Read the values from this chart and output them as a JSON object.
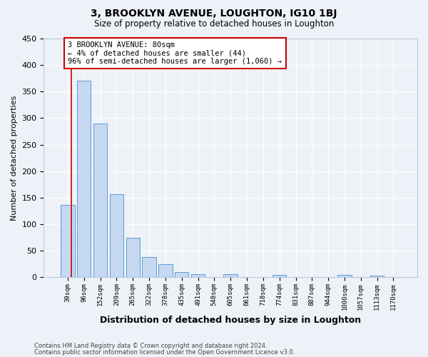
{
  "title": "3, BROOKLYN AVENUE, LOUGHTON, IG10 1BJ",
  "subtitle": "Size of property relative to detached houses in Loughton",
  "xlabel": "Distribution of detached houses by size in Loughton",
  "ylabel": "Number of detached properties",
  "bar_labels": [
    "39sqm",
    "96sqm",
    "152sqm",
    "209sqm",
    "265sqm",
    "322sqm",
    "378sqm",
    "435sqm",
    "491sqm",
    "548sqm",
    "605sqm",
    "661sqm",
    "718sqm",
    "774sqm",
    "831sqm",
    "887sqm",
    "944sqm",
    "1000sqm",
    "1057sqm",
    "1113sqm",
    "1170sqm"
  ],
  "bar_values": [
    137,
    370,
    290,
    156,
    75,
    38,
    25,
    10,
    6,
    0,
    6,
    0,
    0,
    5,
    0,
    0,
    0,
    4,
    0,
    3,
    0
  ],
  "bar_color": "#c5d8f0",
  "bar_edge_color": "#5b9bd5",
  "ylim": [
    0,
    450
  ],
  "yticks": [
    0,
    50,
    100,
    150,
    200,
    250,
    300,
    350,
    400,
    450
  ],
  "property_line_color": "#cc0000",
  "annotation_line1": "3 BROOKLYN AVENUE: 80sqm",
  "annotation_line2": "← 4% of detached houses are smaller (44)",
  "annotation_line3": "96% of semi-detached houses are larger (1,060) →",
  "footer_line1": "Contains HM Land Registry data © Crown copyright and database right 2024.",
  "footer_line2": "Contains public sector information licensed under the Open Government Licence v3.0.",
  "bg_color": "#eef2f8",
  "grid_color": "#ffffff",
  "spine_color": "#b8c8dc"
}
